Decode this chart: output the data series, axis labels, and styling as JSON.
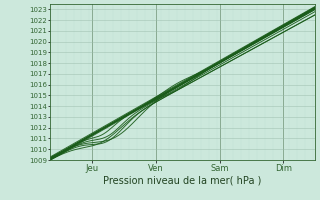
{
  "xlabel": "Pression niveau de la mer( hPa )",
  "ylim": [
    1009,
    1023.5
  ],
  "xlim": [
    0,
    100
  ],
  "yticks": [
    1009,
    1010,
    1011,
    1012,
    1013,
    1014,
    1015,
    1016,
    1017,
    1018,
    1019,
    1020,
    1021,
    1022,
    1023
  ],
  "xtick_positions": [
    16,
    40,
    64,
    88
  ],
  "xtick_labels": [
    "Jeu",
    "Ven",
    "Sam",
    "Dim"
  ],
  "bg_color": "#cce8dc",
  "grid_color_major": "#99bbaa",
  "grid_color_minor": "#bbddd0",
  "line_color": "#1a5c1a",
  "axis_color": "#336633",
  "tick_label_color": "#336633",
  "xlabel_color": "#224422",
  "vline_color": "#668866"
}
